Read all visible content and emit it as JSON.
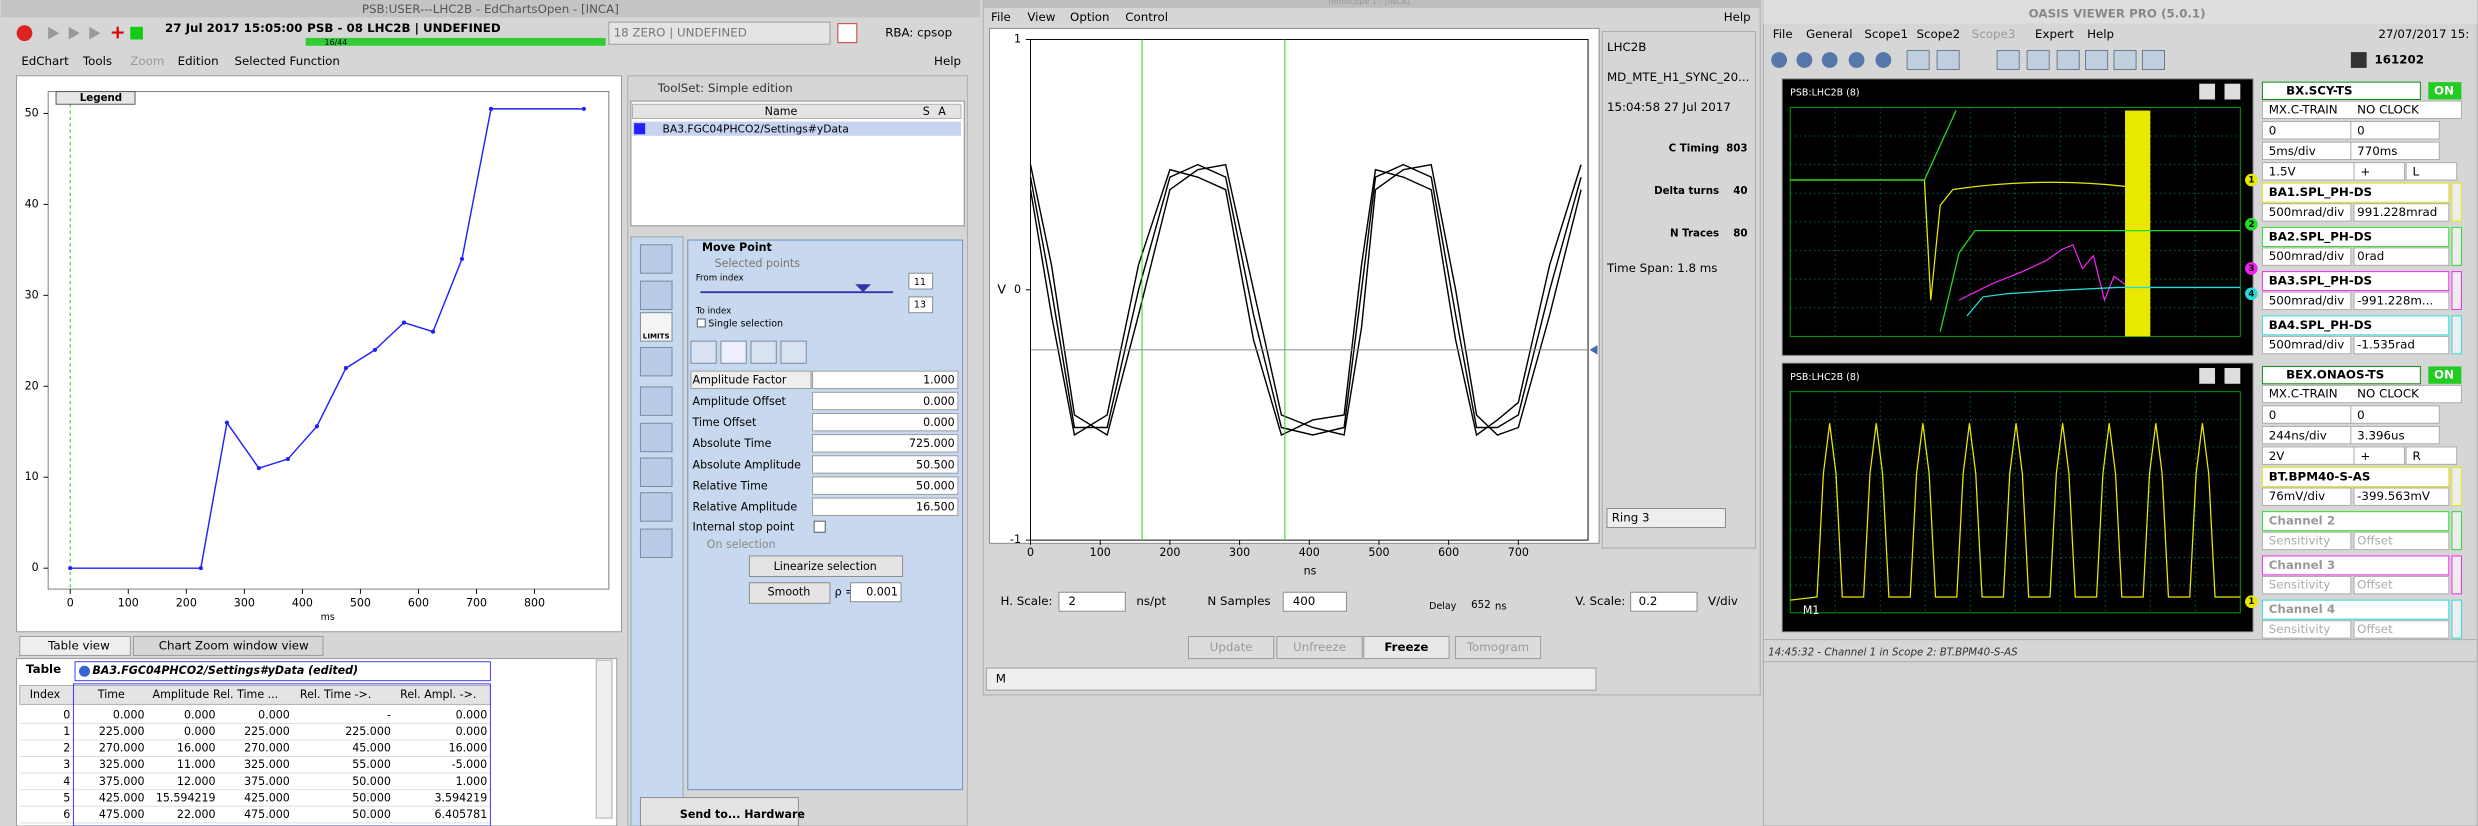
{
  "edchart": {
    "title": "PSB:USER---LHC2B - EdChartsOpen - [INCA]",
    "toolbar": {
      "date": "27 Jul 2017 15:05:00",
      "cycle": "PSB - 08 LHC2B | UNDEFINED",
      "counter": "16/44",
      "zero": "18 ZERO | UNDEFINED",
      "rba": "RBA: cpsop"
    },
    "menu": [
      "EdChart",
      "Tools",
      "Zoom",
      "Edition",
      "Selected Function"
    ],
    "help": "Help",
    "chart_data": {
      "type": "line",
      "legend": "Legend",
      "x_label": "ms",
      "x": [
        0,
        225,
        270,
        325,
        375,
        425,
        475,
        525,
        575,
        625,
        675,
        725,
        885
      ],
      "values": [
        0,
        0,
        16,
        11,
        12,
        15.594219,
        22,
        24,
        27,
        26,
        34,
        50.5,
        50.5
      ],
      "color": "#2020ff",
      "markers": true,
      "xlim": [
        -38,
        928
      ],
      "ylim": [
        -2.3,
        52.4
      ],
      "xticks": [
        0,
        100,
        200,
        300,
        400,
        500,
        600,
        700,
        800
      ],
      "yticks": [
        0,
        10,
        20,
        30,
        40,
        50
      ],
      "marker_line_x": 0,
      "marker_line_color": "#22bb22"
    },
    "tabs": [
      "Table view",
      "Chart Zoom window view"
    ],
    "table": {
      "label": "Table",
      "function": "BA3.FGC04PHCO2/Settings#yData (edited)",
      "columns": [
        "Index",
        "Time",
        "Amplitude",
        "Rel. Time ...",
        "Rel. Time ->.",
        "Rel. Ampl. ->."
      ],
      "rows": [
        [
          "0",
          "0.000",
          "0.000",
          "0.000",
          "-",
          "0.000"
        ],
        [
          "1",
          "225.000",
          "0.000",
          "225.000",
          "225.000",
          "0.000"
        ],
        [
          "2",
          "270.000",
          "16.000",
          "270.000",
          "45.000",
          "16.000"
        ],
        [
          "3",
          "325.000",
          "11.000",
          "325.000",
          "55.000",
          "-5.000"
        ],
        [
          "4",
          "375.000",
          "12.000",
          "375.000",
          "50.000",
          "1.000"
        ],
        [
          "5",
          "425.000",
          "15.594219",
          "425.000",
          "50.000",
          "3.594219"
        ],
        [
          "6",
          "475.000",
          "22.000",
          "475.000",
          "50.000",
          "6.405781"
        ]
      ]
    }
  },
  "toolset": {
    "title": "ToolSet: Simple edition",
    "columns": [
      "Name",
      "S",
      "A"
    ],
    "function": "BA3.FGC04PHCO2/Settings#yData",
    "limits": "LIMITS",
    "move_point": "Move Point",
    "selected_points": "Selected points",
    "from_index": "From index",
    "from_value": "11",
    "to_index": "To index",
    "to_value": "13",
    "single_selection": "Single selection",
    "fields": [
      {
        "label": "Amplitude Factor",
        "value": "1.000"
      },
      {
        "label": "Amplitude Offset",
        "value": "0.000"
      },
      {
        "label": "Time Offset",
        "value": "0.000"
      },
      {
        "label": "Absolute Time",
        "value": "725.000"
      },
      {
        "label": "Absolute Amplitude",
        "value": "50.500"
      },
      {
        "label": "Relative Time",
        "value": "50.000"
      },
      {
        "label": "Relative Amplitude",
        "value": "16.500"
      }
    ],
    "internal_stop": "Internal stop point",
    "on_selection": "On selection",
    "linearize": "Linearize selection",
    "smooth": "Smooth",
    "rho": "ρ =",
    "rho_value": "0.001",
    "send": "Send to... Hardware"
  },
  "timoscope": {
    "title": "Timoscope 1 - [INCA]",
    "menu": [
      "File",
      "View",
      "Option",
      "Control"
    ],
    "help": "Help",
    "chart_data": {
      "type": "line",
      "y_label": "V",
      "x_label": "ns",
      "x": [
        0,
        30,
        63,
        110,
        155,
        200,
        240,
        280,
        320,
        360,
        405,
        450,
        475,
        495,
        535,
        575,
        610,
        640,
        670,
        700,
        745,
        790
      ],
      "series": [
        {
          "color": "#000000",
          "values": [
            0.45,
            0,
            -0.55,
            -0.55,
            0,
            0.45,
            0.5,
            0.45,
            -0.1,
            -0.55,
            -0.58,
            -0.55,
            0,
            0.45,
            0.5,
            0.45,
            -0.1,
            -0.55,
            -0.55,
            -0.5,
            0,
            0.45
          ]
        },
        {
          "color": "#000000",
          "values": [
            0.5,
            0.1,
            -0.5,
            -0.58,
            -0.1,
            0.4,
            0.48,
            0.5,
            0,
            -0.5,
            -0.55,
            -0.58,
            -0.15,
            0.4,
            0.48,
            0.5,
            0,
            -0.5,
            -0.58,
            -0.55,
            -0.1,
            0.4
          ]
        },
        {
          "color": "#000000",
          "values": [
            0.4,
            -0.1,
            -0.58,
            -0.5,
            0.1,
            0.48,
            0.45,
            0.4,
            -0.2,
            -0.58,
            -0.52,
            -0.5,
            0.1,
            0.48,
            0.45,
            0.4,
            -0.2,
            -0.58,
            -0.52,
            -0.45,
            0.1,
            0.5
          ]
        }
      ],
      "xlim": [
        0,
        800
      ],
      "ylim": [
        -1,
        1
      ],
      "xticks": [
        0,
        100,
        200,
        300,
        400,
        500,
        600,
        700
      ],
      "yticks": [
        -1,
        0,
        1
      ],
      "cursors": [
        160,
        365
      ],
      "cursor_color": "#22cc22",
      "reference_level": -0.24
    },
    "info": {
      "beam": "LHC2B",
      "user": "MD_MTE_H1_SYNC_20...",
      "stamp": "15:04:58 27 Jul 2017",
      "c_timing": "C Timing",
      "c_timing_value": "803",
      "delta_turns": "Delta turns",
      "delta_turns_value": "40",
      "n_traces": "N Traces",
      "n_traces_value": "80",
      "time_span": "Time Span: 1.8 ms",
      "ring": "Ring 3"
    },
    "controls": {
      "h_scale": "H. Scale:",
      "h_scale_value": "2",
      "h_unit": "ns/pt",
      "n_samples": "N Samples",
      "n_samples_value": "400",
      "delay": "Delay",
      "delay_value": "652",
      "delay_unit": "ns",
      "v_scale": "V. Scale:",
      "v_scale_value": "0.2",
      "v_unit": "V/div"
    },
    "buttons": [
      "Update",
      "Unfreeze",
      "Freeze",
      "Tomogram"
    ],
    "status": "M"
  },
  "oasis": {
    "title": "OASIS VIEWER PRO (5.0.1)",
    "menu": [
      "File",
      "General",
      "Scope1",
      "Scope2",
      "Scope3",
      "Expert",
      "Help"
    ],
    "date": "27/07/2017 15:",
    "phone": "161202",
    "scopes": [
      {
        "label": "PSB:LHC2B (8)",
        "source": "BX.SCY-TS",
        "state": "ON",
        "mode": "MX.C-TRAIN",
        "clock": "NO CLOCK",
        "fields": [
          "0",
          "0",
          "5ms/div",
          "770ms",
          "1.5V",
          "+",
          "L"
        ],
        "channels": [
          {
            "number": "1",
            "name": "BA1.SPL_PH-DS",
            "sens": "500mrad/div",
            "offset": "991.228mrad",
            "color": "#e8e800"
          },
          {
            "number": "2",
            "name": "BA2.SPL_PH-DS",
            "sens": "500mrad/div",
            "offset": "0rad",
            "color": "#22dd22"
          },
          {
            "number": "3",
            "name": "BA3.SPL_PH-DS",
            "sens": "500mrad/div",
            "offset": "-991.228m...",
            "color": "#ee22ee"
          },
          {
            "number": "4",
            "name": "BA4.SPL_PH-DS",
            "sens": "500mrad/div",
            "offset": "-1.535rad",
            "color": "#22dddd"
          }
        ]
      },
      {
        "label": "PSB:LHC2B (8)",
        "marker": "M1",
        "source": "BEX.ONAOS-TS",
        "state": "ON",
        "mode": "MX.C-TRAIN",
        "clock": "NO CLOCK",
        "fields": [
          "0",
          "0",
          "244ns/div",
          "3.396us",
          "2V",
          "+",
          "R"
        ],
        "channels": [
          {
            "number": "1",
            "name": "BT.BPM40-S-AS",
            "sens": "76mV/div",
            "offset": "-399.563mV",
            "color": "#e8e800"
          },
          {
            "name": "Channel 2",
            "sens": "Sensitivity",
            "offset": "Offset",
            "color": "#22dd22"
          },
          {
            "name": "Channel 3",
            "sens": "Sensitivity",
            "offset": "Offset",
            "color": "#ee22ee"
          },
          {
            "name": "Channel 4",
            "sens": "Sensitivity",
            "offset": "Offset",
            "color": "#22dddd"
          }
        ]
      }
    ],
    "status": "14:45:32 - Channel 1 in Scope 2: BT.BPM40-S-AS"
  }
}
